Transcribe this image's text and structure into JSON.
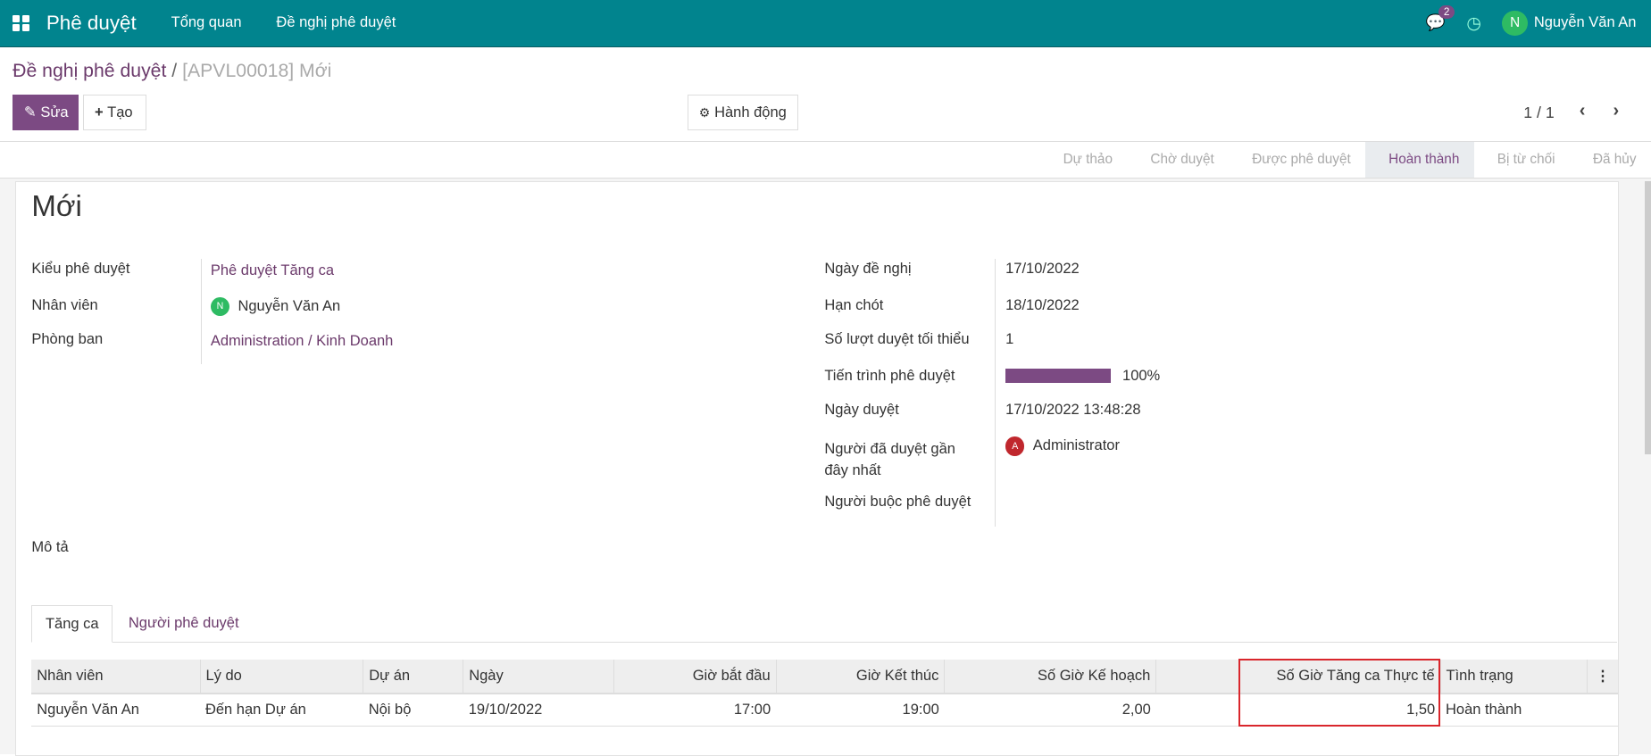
{
  "nav": {
    "app": "Phê duyệt",
    "menu": [
      "Tổng quan",
      "Đề nghị phê duyệt"
    ],
    "messages_count": "2",
    "user_initial": "N",
    "user": "Nguyễn Văn An"
  },
  "breadcrumb": {
    "parent": "Đề nghị phê duyệt",
    "current": "[APVL00018] Mới"
  },
  "toolbar": {
    "edit": "Sửa",
    "create": "Tạo",
    "action": "Hành động",
    "pager": "1 / 1"
  },
  "status": {
    "stages": [
      "Dự thảo",
      "Chờ duyệt",
      "Được phê duyệt",
      "Hoàn thành",
      "Bị từ chối",
      "Đã hủy"
    ],
    "active": "Hoàn thành"
  },
  "form": {
    "title": "Mới",
    "left": {
      "type_label": "Kiểu phê duyệt",
      "type": "Phê duyệt Tăng ca",
      "employee_label": "Nhân viên",
      "employee_initial": "N",
      "employee": "Nguyễn Văn An",
      "dept_label": "Phòng ban",
      "dept": "Administration / Kinh Doanh"
    },
    "right": {
      "date_label": "Ngày đề nghị",
      "date": "17/10/2022",
      "deadline_label": "Hạn chót",
      "deadline": "18/10/2022",
      "min_label": "Số lượt duyệt tối thiểu",
      "min": "1",
      "progress_label": "Tiến trình phê duyệt",
      "progress": "100%",
      "progress_value": 100,
      "approved_date_label": "Ngày duyệt",
      "approved_date": "17/10/2022 13:48:28",
      "last_approver_label": "Người đã duyệt gần đây nhất",
      "last_approver_initial": "A",
      "last_approver": "Administrator",
      "forced_label": "Người buộc phê duyệt"
    },
    "desc_label": "Mô tả",
    "tabs": [
      "Tăng ca",
      "Người phê duyệt"
    ],
    "table": {
      "headers": [
        "Nhân viên",
        "Lý do",
        "Dự án",
        "Ngày",
        "Giờ bắt đầu",
        "Giờ Kết thúc",
        "Số Giờ Kế hoạch",
        "Số Giờ Tăng ca Thực tế",
        "Tình trạng"
      ],
      "rows": [
        [
          "Nguyễn Văn An",
          "Đến hạn Dự án",
          "Nội bộ",
          "19/10/2022",
          "17:00",
          "19:00",
          "2,00",
          "1,50",
          "Hoàn thành"
        ]
      ]
    }
  },
  "colors": {
    "navbar": "#01848e",
    "primary": "#7c4a83",
    "highlight": "#d9262c"
  }
}
